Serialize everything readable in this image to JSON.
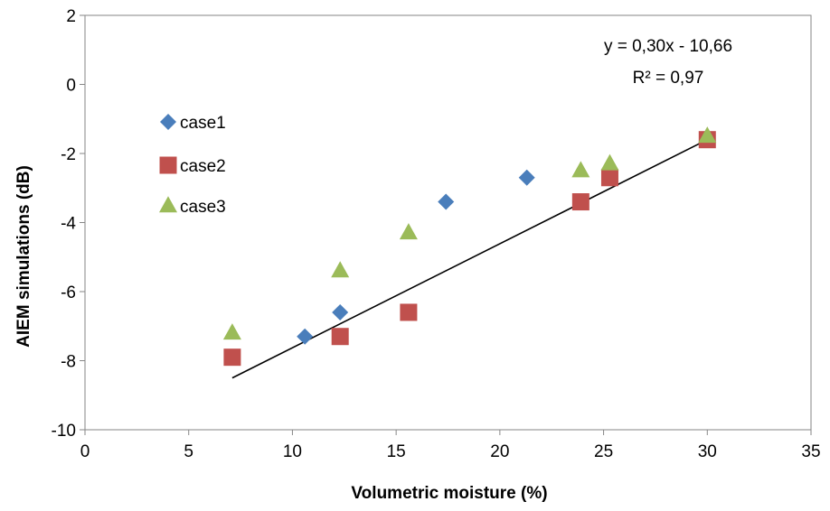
{
  "chart_data": {
    "type": "scatter",
    "xlabel": "Volumetric moisture (%)",
    "ylabel": "AIEM simulations (dB)",
    "xlim": [
      0,
      35
    ],
    "ylim": [
      -10,
      2
    ],
    "x_ticks": [
      0,
      5,
      10,
      15,
      20,
      25,
      30,
      35
    ],
    "y_ticks": [
      2,
      0,
      -2,
      -4,
      -6,
      -8,
      -10
    ],
    "x_tick_labels": [
      "0",
      "5",
      "10",
      "15",
      "20",
      "25",
      "30",
      "35"
    ],
    "y_tick_labels": [
      "2",
      "0",
      "-2",
      "-4",
      "-6",
      "-8",
      "-10"
    ],
    "grid": false,
    "legend_position": "left",
    "series": [
      {
        "name": "case1",
        "marker": "diamond",
        "color": "#4a7ebb",
        "points": [
          [
            10.6,
            -7.3
          ],
          [
            12.3,
            -6.6
          ],
          [
            17.4,
            -3.4
          ],
          [
            21.3,
            -2.7
          ],
          [
            25.3,
            -2.6
          ],
          [
            30.0,
            -1.6
          ]
        ]
      },
      {
        "name": "case2",
        "marker": "square",
        "color": "#c0504d",
        "points": [
          [
            7.1,
            -7.9
          ],
          [
            12.3,
            -7.3
          ],
          [
            15.6,
            -6.6
          ],
          [
            23.9,
            -3.4
          ],
          [
            25.3,
            -2.7
          ],
          [
            30.0,
            -1.6
          ]
        ]
      },
      {
        "name": "case3",
        "marker": "triangle",
        "color": "#9bbb59",
        "points": [
          [
            7.1,
            -7.2
          ],
          [
            12.3,
            -5.4
          ],
          [
            15.6,
            -4.3
          ],
          [
            23.9,
            -2.5
          ],
          [
            25.3,
            -2.3
          ],
          [
            30.0,
            -1.5
          ]
        ]
      }
    ],
    "trendline": {
      "x": [
        7.1,
        30.0
      ],
      "y": [
        -8.5,
        -1.6
      ],
      "color": "#000000"
    },
    "annotations": {
      "equation": "y = 0,30x - 10,66",
      "r_squared": "R² = 0,97"
    }
  }
}
